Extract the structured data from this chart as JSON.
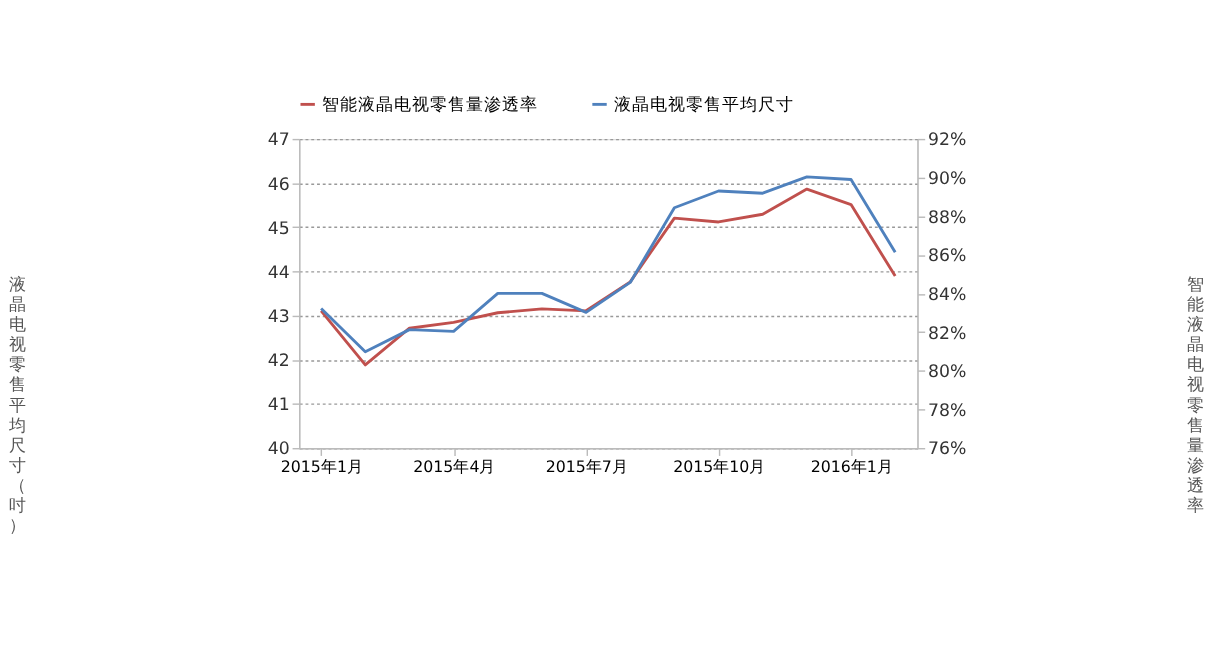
{
  "chart_data": {
    "type": "line",
    "categories": [
      "2015年1月",
      null,
      null,
      "2015年4月",
      null,
      null,
      "2015年7月",
      null,
      null,
      "2015年10月",
      null,
      null,
      "2016年1月",
      null
    ],
    "series": [
      {
        "name": "智能液晶电视零售量渗透率",
        "color": "#c0504d",
        "axis": "y2",
        "values": [
          83.1,
          80.3,
          82.2,
          82.5,
          83.0,
          83.2,
          83.1,
          84.6,
          87.9,
          87.7,
          88.1,
          89.4,
          88.6,
          84.9
        ]
      },
      {
        "name": "液晶电视零售平均尺寸",
        "color": "#4f81bd",
        "values": [
          43.16,
          42.18,
          42.68,
          42.64,
          43.5,
          43.5,
          43.07,
          43.75,
          45.44,
          45.82,
          45.77,
          46.14,
          46.08,
          44.43
        ]
      }
    ],
    "ylabel": "液晶电视零售平均尺寸（吋）",
    "y2label": "智能液晶电视零售量渗透率",
    "ylim": [
      40,
      47
    ],
    "yticks": [
      40,
      41,
      42,
      43,
      44,
      45,
      46,
      47
    ],
    "y2lim": [
      76,
      92
    ],
    "y2ticks": [
      {
        "value": 76,
        "label": "76%"
      },
      {
        "value": 78,
        "label": "78%"
      },
      {
        "value": 80,
        "label": "80%"
      },
      {
        "value": 82,
        "label": "82%"
      },
      {
        "value": 84,
        "label": "84%"
      },
      {
        "value": 86,
        "label": "86%"
      },
      {
        "value": 88,
        "label": "88%"
      },
      {
        "value": 90,
        "label": "90%"
      },
      {
        "value": 92,
        "label": "92%"
      }
    ],
    "grid": "y",
    "legend": "top",
    "line_style": "solid"
  }
}
